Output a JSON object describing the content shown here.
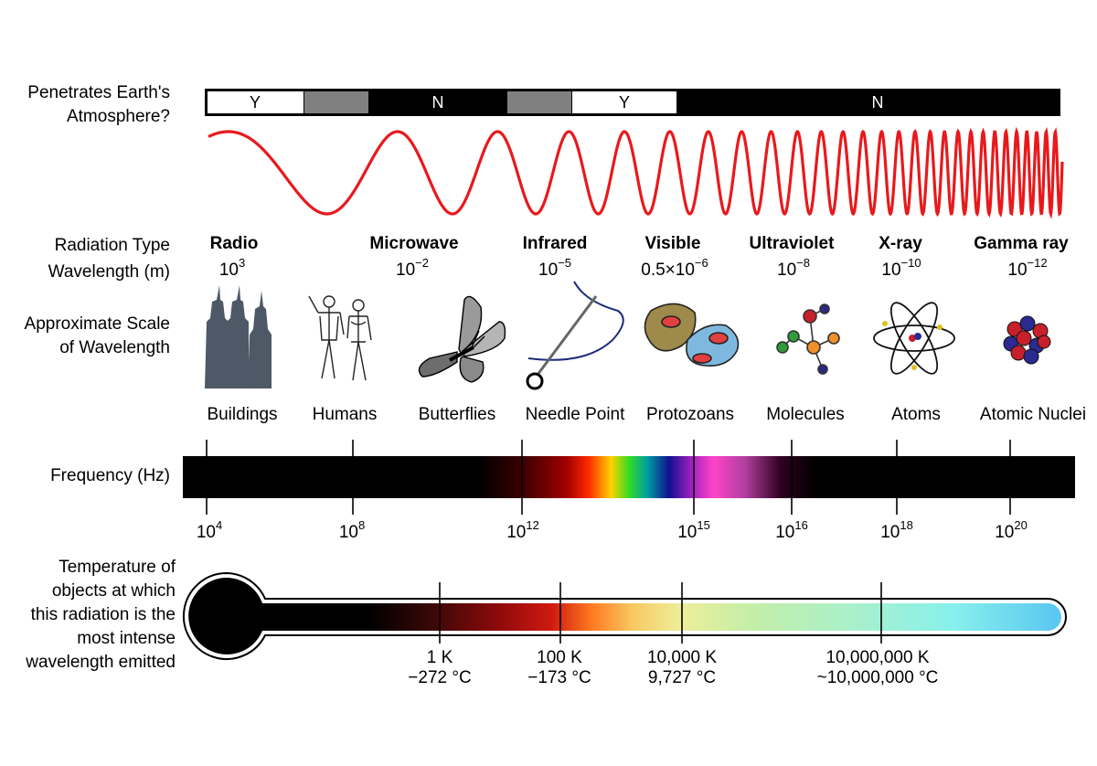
{
  "labels": {
    "penetrates_line1": "Penetrates Earth's",
    "penetrates_line2": "Atmosphere?",
    "radiation_type": "Radiation Type",
    "wavelength": "Wavelength (m)",
    "scale_line1": "Approximate Scale",
    "scale_line2": "of Wavelength",
    "frequency": "Frequency (Hz)",
    "temp_line1": "Temperature of",
    "temp_line2": "objects at which",
    "temp_line3": "this radiation is the",
    "temp_line4": "most intense",
    "temp_line5": "wavelength emitted"
  },
  "atmosphere": [
    {
      "text": "Y",
      "value": "transparent",
      "color": "#ffffff"
    },
    {
      "text": "",
      "value": "partial",
      "color": "#808080"
    },
    {
      "text": "N",
      "value": "opaque",
      "color": "#000000"
    },
    {
      "text": "",
      "value": "partial",
      "color": "#808080"
    },
    {
      "text": "Y",
      "value": "transparent",
      "color": "#ffffff"
    },
    {
      "text": "N",
      "value": "opaque",
      "color": "#000000"
    }
  ],
  "wave_color": "#e8191c",
  "radiation_types": [
    {
      "name": "Radio",
      "wl_base": "10",
      "wl_exp": "3"
    },
    {
      "name": "Microwave",
      "wl_base": "10",
      "wl_exp": "−2"
    },
    {
      "name": "Infrared",
      "wl_base": "10",
      "wl_exp": "−5"
    },
    {
      "name": "Visible",
      "wl_base": "0.5×10",
      "wl_exp": "−6"
    },
    {
      "name": "Ultraviolet",
      "wl_base": "10",
      "wl_exp": "−8"
    },
    {
      "name": "X-ray",
      "wl_base": "10",
      "wl_exp": "−10"
    },
    {
      "name": "Gamma ray",
      "wl_base": "10",
      "wl_exp": "−12"
    }
  ],
  "scale_objects": [
    {
      "name": "Buildings",
      "icon": "buildings-icon"
    },
    {
      "name": "Humans",
      "icon": "humans-icon"
    },
    {
      "name": "Butterflies",
      "icon": "butterfly-icon"
    },
    {
      "name": "Needle Point",
      "icon": "needle-icon"
    },
    {
      "name": "Protozoans",
      "icon": "protozoan-icon"
    },
    {
      "name": "Molecules",
      "icon": "molecule-icon"
    },
    {
      "name": "Atoms",
      "icon": "atom-icon"
    },
    {
      "name": "Atomic Nuclei",
      "icon": "nucleus-icon"
    }
  ],
  "frequency_ticks": [
    {
      "base": "10",
      "exp": "4"
    },
    {
      "base": "10",
      "exp": "8"
    },
    {
      "base": "10",
      "exp": "12"
    },
    {
      "base": "10",
      "exp": "15"
    },
    {
      "base": "10",
      "exp": "16"
    },
    {
      "base": "10",
      "exp": "18"
    },
    {
      "base": "10",
      "exp": "20"
    }
  ],
  "temperatures": [
    {
      "kelvin": "1 K",
      "celsius": "−272 °C"
    },
    {
      "kelvin": "100 K",
      "celsius": "−173 °C"
    },
    {
      "kelvin": "10,000 K",
      "celsius": "9,727 °C"
    },
    {
      "kelvin": "10,000,000 K",
      "celsius": "~10,000,000 °C"
    }
  ]
}
